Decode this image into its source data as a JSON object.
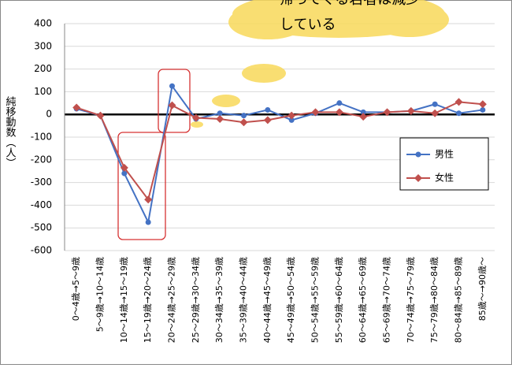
{
  "chart_data": {
    "type": "line",
    "y_label": "純移動数（人）",
    "annotation": [
      "帰ってくる若者は減少",
      "している"
    ],
    "categories": [
      "0～4歳→5～9歳",
      "5～9歳→10～14歳",
      "10～14歳→15～19歳",
      "15～19歳→20～24歳",
      "20～24歳→25～29歳",
      "25～29歳→30～34歳",
      "30～34歳→35～39歳",
      "35～39歳→40～44歳",
      "40～44歳→45～49歳",
      "45～49歳→50～54歳",
      "50～54歳→55～59歳",
      "55～59歳→60～64歳",
      "60～64歳→65～69歳",
      "65～69歳→70～74歳",
      "70～74歳→75～79歳",
      "75～79歳→80～84歳",
      "80～84歳→85～89歳",
      "85歳～→90歳～"
    ],
    "series": [
      {
        "name": "男性",
        "color": "#4472c4",
        "marker": "circle",
        "values": [
          25,
          -5,
          -260,
          -475,
          125,
          -20,
          5,
          -5,
          20,
          -25,
          5,
          50,
          10,
          10,
          15,
          45,
          5,
          20
        ]
      },
      {
        "name": "女性",
        "color": "#c0504d",
        "marker": "diamond",
        "values": [
          30,
          -5,
          -235,
          -375,
          40,
          -15,
          -20,
          -35,
          -25,
          -5,
          10,
          10,
          -10,
          10,
          15,
          5,
          55,
          45
        ]
      }
    ],
    "ylim": [
      -600,
      400
    ],
    "yticks": [
      -600,
      -500,
      -400,
      -300,
      -200,
      -100,
      0,
      100,
      200,
      300,
      400
    ],
    "grid": true
  }
}
